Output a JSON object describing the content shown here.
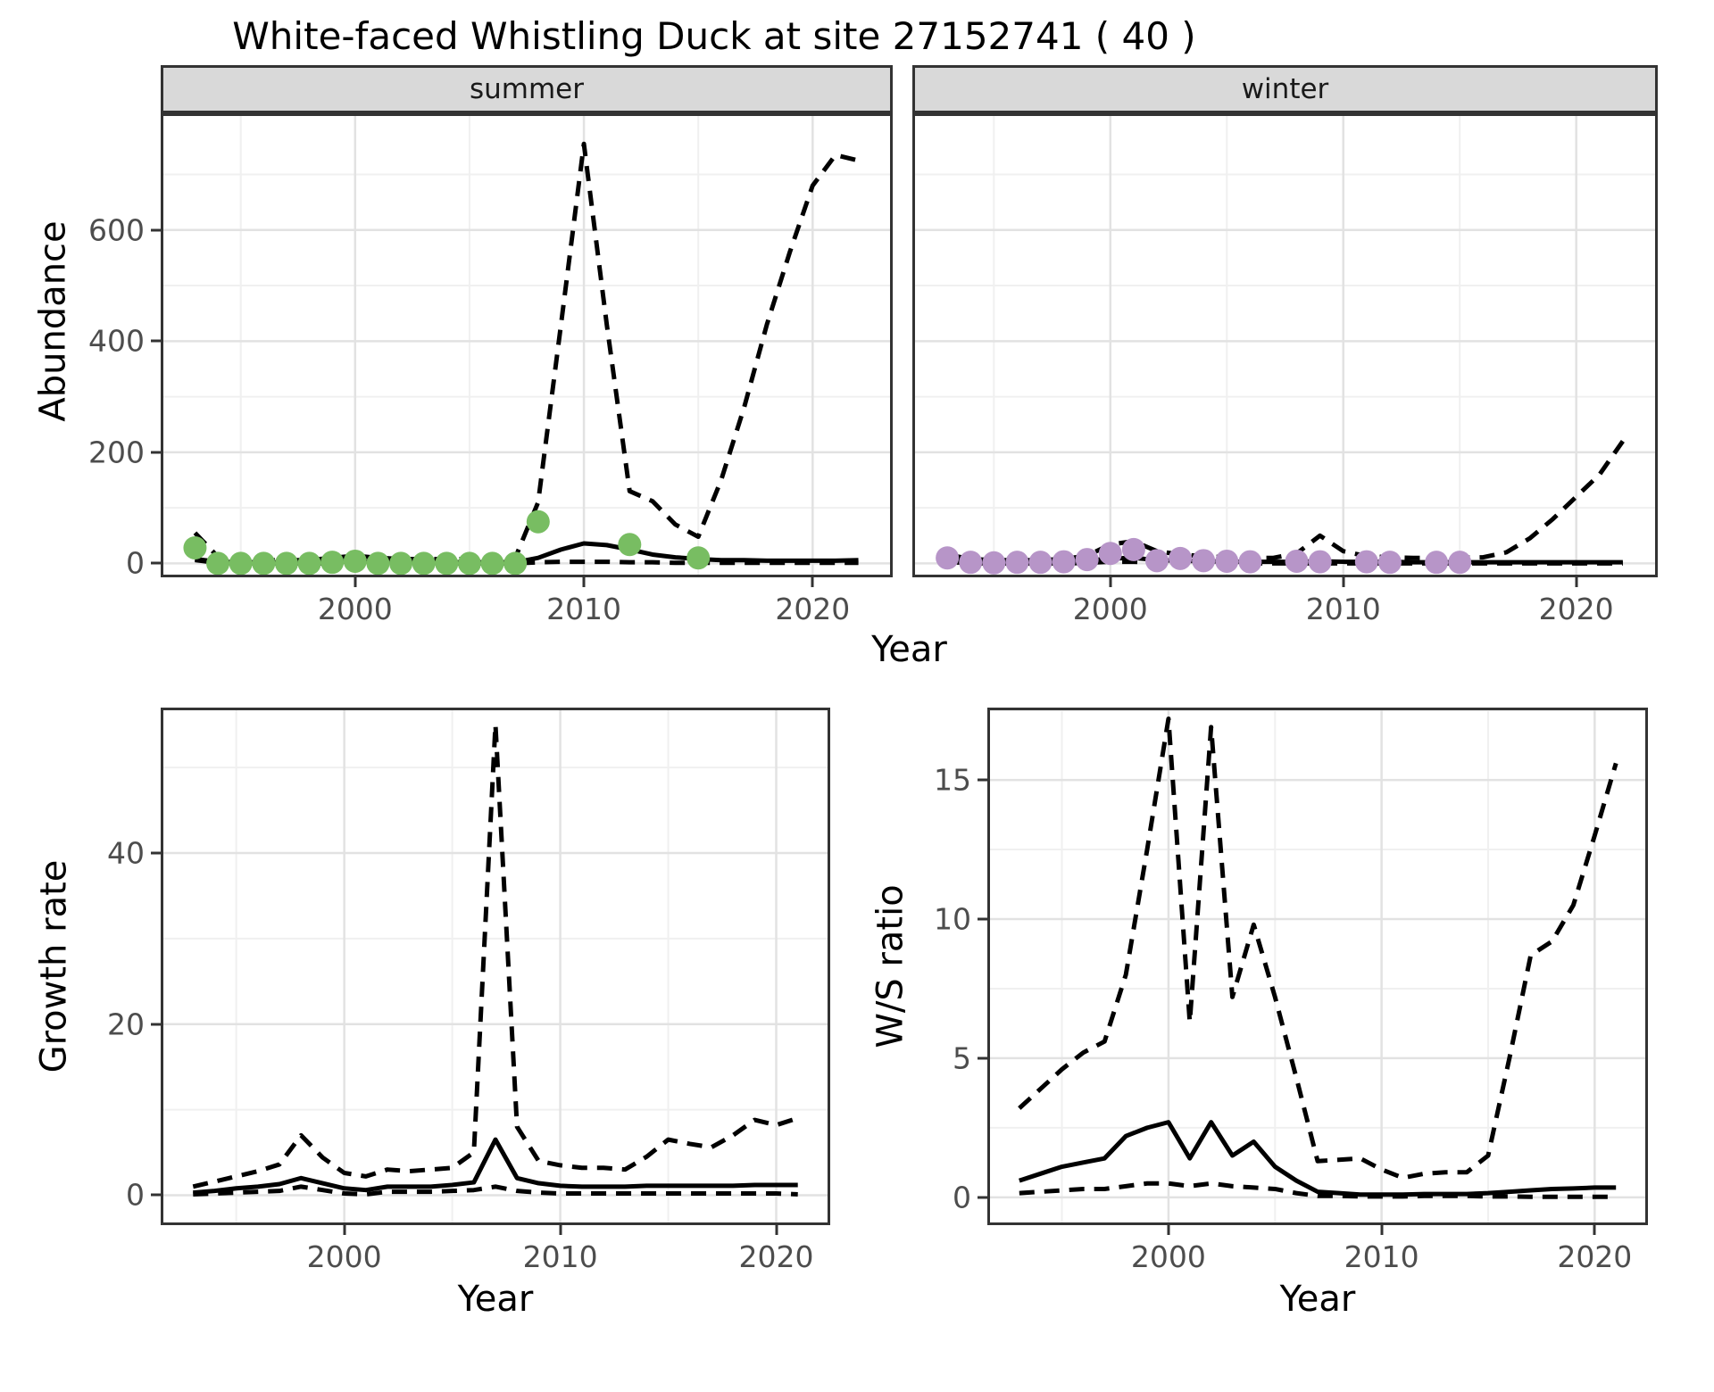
{
  "title": "White-faced Whistling Duck at site 27152741 ( 40 )",
  "axis_labels": {
    "x": "Year",
    "abundance": "Abundance",
    "growth": "Growth rate",
    "ws": "W/S ratio"
  },
  "colors": {
    "summer_point": "#78bd62",
    "winter_point": "#b795c8",
    "line": "#000000",
    "strip_bg": "#d9d9d9",
    "panel_border": "#333333",
    "grid_major": "#e2e2e2",
    "grid_minor": "#f0f0f0",
    "axis_text": "#4d4d4d"
  },
  "chart_data": [
    {
      "type": "line",
      "strip_label": "summer",
      "xlabel": "Year",
      "ylabel": "Abundance",
      "xlim": [
        1991.5,
        2023.5
      ],
      "ylim": [
        -25,
        810
      ],
      "xticks": [
        2000,
        2010,
        2020
      ],
      "yticks": [
        0,
        200,
        400,
        600
      ],
      "series": [
        {
          "name": "lower_ci",
          "style": "dashed",
          "x": [
            1993,
            1994,
            1995,
            1996,
            1997,
            1998,
            1999,
            2000,
            2001,
            2002,
            2003,
            2004,
            2005,
            2006,
            2007,
            2008,
            2009,
            2010,
            2011,
            2012,
            2013,
            2014,
            2015,
            2016,
            2017,
            2018,
            2019,
            2020,
            2021,
            2022
          ],
          "y": [
            6,
            1,
            0,
            0,
            0,
            0,
            0,
            1,
            0,
            0,
            0,
            0,
            0,
            0,
            0,
            2,
            3,
            3,
            3,
            2,
            2,
            1,
            1,
            1,
            1,
            1,
            1,
            1,
            1,
            1
          ]
        },
        {
          "name": "upper_ci",
          "style": "dashed",
          "x": [
            1993,
            1994,
            1995,
            1996,
            1997,
            1998,
            1999,
            2000,
            2001,
            2002,
            2003,
            2004,
            2005,
            2006,
            2007,
            2008,
            2009,
            2010,
            2011,
            2012,
            2013,
            2014,
            2015,
            2016,
            2017,
            2018,
            2019,
            2020,
            2021,
            2022
          ],
          "y": [
            55,
            12,
            8,
            6,
            6,
            6,
            10,
            14,
            10,
            8,
            8,
            8,
            8,
            8,
            10,
            110,
            430,
            755,
            430,
            130,
            112,
            70,
            48,
            150,
            280,
            430,
            560,
            680,
            735,
            725
          ]
        },
        {
          "name": "fit",
          "style": "solid",
          "x": [
            1993,
            1994,
            1995,
            1996,
            1997,
            1998,
            1999,
            2000,
            2001,
            2002,
            2003,
            2004,
            2005,
            2006,
            2007,
            2008,
            2009,
            2010,
            2011,
            2012,
            2013,
            2014,
            2015,
            2016,
            2017,
            2018,
            2019,
            2020,
            2021,
            2022
          ],
          "y": [
            8,
            3,
            2,
            2,
            2,
            2,
            3,
            4,
            3,
            3,
            2,
            2,
            2,
            2,
            2,
            10,
            25,
            36,
            33,
            25,
            16,
            11,
            8,
            6,
            6,
            5,
            5,
            5,
            5,
            6
          ]
        },
        {
          "name": "observations",
          "style": "points",
          "color": "#78bd62",
          "x": [
            1993,
            1994,
            1995,
            1996,
            1997,
            1998,
            1999,
            2000,
            2001,
            2002,
            2003,
            2004,
            2005,
            2006,
            2007,
            2008,
            2012,
            2015
          ],
          "y": [
            28,
            0,
            0,
            0,
            0,
            0,
            2,
            4,
            0,
            0,
            0,
            0,
            0,
            0,
            0,
            75,
            34,
            10
          ]
        }
      ]
    },
    {
      "type": "line",
      "strip_label": "winter",
      "xlabel": "Year",
      "ylabel": "Abundance",
      "xlim": [
        1991.5,
        2023.5
      ],
      "ylim": [
        -25,
        810
      ],
      "xticks": [
        2000,
        2010,
        2020
      ],
      "yticks": [
        0,
        200,
        400,
        600
      ],
      "series": [
        {
          "name": "lower_ci",
          "style": "dashed",
          "x": [
            1993,
            1994,
            1995,
            1996,
            1997,
            1998,
            1999,
            2000,
            2001,
            2002,
            2003,
            2004,
            2005,
            2006,
            2007,
            2008,
            2009,
            2010,
            2011,
            2012,
            2013,
            2014,
            2015,
            2016,
            2017,
            2018,
            2019,
            2020,
            2021,
            2022
          ],
          "y": [
            3,
            0,
            0,
            0,
            0,
            0,
            1,
            3,
            3,
            1,
            1,
            0,
            0,
            0,
            0,
            0,
            0,
            0,
            0,
            0,
            0,
            0,
            0,
            0,
            0,
            0,
            0,
            0,
            0,
            0
          ]
        },
        {
          "name": "upper_ci",
          "style": "dashed",
          "x": [
            1993,
            1994,
            1995,
            1996,
            1997,
            1998,
            1999,
            2000,
            2001,
            2002,
            2003,
            2004,
            2005,
            2006,
            2007,
            2008,
            2009,
            2010,
            2011,
            2012,
            2013,
            2014,
            2015,
            2016,
            2017,
            2018,
            2019,
            2020,
            2021,
            2022
          ],
          "y": [
            16,
            8,
            6,
            6,
            6,
            8,
            14,
            34,
            40,
            22,
            16,
            13,
            11,
            10,
            10,
            18,
            50,
            22,
            13,
            11,
            10,
            10,
            10,
            11,
            20,
            45,
            80,
            120,
            160,
            220
          ]
        },
        {
          "name": "fit",
          "style": "solid",
          "x": [
            1993,
            1994,
            1995,
            1996,
            1997,
            1998,
            1999,
            2000,
            2001,
            2002,
            2003,
            2004,
            2005,
            2006,
            2007,
            2008,
            2009,
            2010,
            2011,
            2012,
            2013,
            2014,
            2015,
            2016,
            2017,
            2018,
            2019,
            2020,
            2021,
            2022
          ],
          "y": [
            8,
            3,
            2,
            2,
            2,
            3,
            5,
            9,
            10,
            6,
            5,
            4,
            3,
            3,
            3,
            3,
            4,
            3,
            3,
            3,
            2,
            2,
            2,
            2,
            2,
            2,
            2,
            2,
            2,
            2
          ]
        },
        {
          "name": "observations",
          "style": "points",
          "color": "#b795c8",
          "x": [
            1993,
            1994,
            1995,
            1996,
            1997,
            1998,
            1999,
            2000,
            2001,
            2002,
            2003,
            2004,
            2005,
            2006,
            2008,
            2009,
            2011,
            2012,
            2014,
            2015
          ],
          "y": [
            10,
            2,
            1,
            2,
            2,
            3,
            7,
            18,
            25,
            5,
            9,
            5,
            4,
            3,
            4,
            3,
            3,
            2,
            2,
            2
          ]
        }
      ]
    },
    {
      "type": "line",
      "strip_label": "",
      "xlabel": "Year",
      "ylabel": "Growth rate",
      "xlim": [
        1991.5,
        2022.5
      ],
      "ylim": [
        -3.5,
        57
      ],
      "xticks": [
        2000,
        2010,
        2020
      ],
      "yticks": [
        0,
        20,
        40
      ],
      "series": [
        {
          "name": "lower_ci",
          "style": "dashed",
          "x": [
            1993,
            1994,
            1995,
            1996,
            1997,
            1998,
            1999,
            2000,
            2001,
            2002,
            2003,
            2004,
            2005,
            2006,
            2007,
            2008,
            2009,
            2010,
            2011,
            2012,
            2013,
            2014,
            2015,
            2016,
            2017,
            2018,
            2019,
            2020,
            2021
          ],
          "y": [
            0.1,
            0.2,
            0.3,
            0.4,
            0.5,
            1.0,
            0.6,
            0.2,
            0.1,
            0.4,
            0.4,
            0.4,
            0.5,
            0.6,
            1.0,
            0.5,
            0.3,
            0.2,
            0.2,
            0.2,
            0.2,
            0.2,
            0.2,
            0.2,
            0.2,
            0.2,
            0.2,
            0.2,
            0.1
          ]
        },
        {
          "name": "upper_ci",
          "style": "dashed",
          "x": [
            1993,
            1994,
            1995,
            1996,
            1997,
            1998,
            1999,
            2000,
            2001,
            2002,
            2003,
            2004,
            2005,
            2006,
            2007,
            2008,
            2009,
            2010,
            2011,
            2012,
            2013,
            2014,
            2015,
            2016,
            2017,
            2018,
            2019,
            2020,
            2021
          ],
          "y": [
            1.0,
            1.6,
            2.2,
            2.8,
            3.6,
            7.0,
            4.4,
            2.6,
            2.2,
            3.0,
            2.8,
            3.0,
            3.2,
            5.0,
            55,
            8.0,
            4.0,
            3.5,
            3.2,
            3.2,
            3.0,
            4.5,
            6.5,
            6.0,
            5.6,
            7.0,
            8.8,
            8.2,
            9.0
          ]
        },
        {
          "name": "fit",
          "style": "solid",
          "x": [
            1993,
            1994,
            1995,
            1996,
            1997,
            1998,
            1999,
            2000,
            2001,
            2002,
            2003,
            2004,
            2005,
            2006,
            2007,
            2008,
            2009,
            2010,
            2011,
            2012,
            2013,
            2014,
            2015,
            2016,
            2017,
            2018,
            2019,
            2020,
            2021
          ],
          "y": [
            0.3,
            0.5,
            0.8,
            1.0,
            1.3,
            2.0,
            1.4,
            0.8,
            0.6,
            1.0,
            1.0,
            1.0,
            1.2,
            1.5,
            6.5,
            2.0,
            1.4,
            1.1,
            1.0,
            1.0,
            1.0,
            1.1,
            1.1,
            1.1,
            1.1,
            1.1,
            1.2,
            1.2,
            1.2
          ]
        }
      ]
    },
    {
      "type": "line",
      "strip_label": "",
      "xlabel": "Year",
      "ylabel": "W/S ratio",
      "xlim": [
        1991.5,
        2022.5
      ],
      "ylim": [
        -1,
        17.6
      ],
      "xticks": [
        2000,
        2010,
        2020
      ],
      "yticks": [
        0,
        5,
        10,
        15
      ],
      "series": [
        {
          "name": "lower_ci",
          "style": "dashed",
          "x": [
            1993,
            1994,
            1995,
            1996,
            1997,
            1998,
            1999,
            2000,
            2001,
            2002,
            2003,
            2004,
            2005,
            2006,
            2007,
            2008,
            2009,
            2010,
            2011,
            2012,
            2013,
            2014,
            2015,
            2016,
            2017,
            2018,
            2019,
            2020,
            2021
          ],
          "y": [
            0.15,
            0.2,
            0.25,
            0.3,
            0.3,
            0.4,
            0.5,
            0.5,
            0.4,
            0.5,
            0.4,
            0.35,
            0.3,
            0.15,
            0.05,
            0.05,
            0.03,
            0.03,
            0.03,
            0.05,
            0.05,
            0.05,
            0.03,
            0.03,
            0.02,
            0.02,
            0.02,
            0.02,
            0.02
          ]
        },
        {
          "name": "upper_ci",
          "style": "dashed",
          "x": [
            1993,
            1994,
            1995,
            1996,
            1997,
            1998,
            1999,
            2000,
            2001,
            2002,
            2003,
            2004,
            2005,
            2006,
            2007,
            2008,
            2009,
            2010,
            2011,
            2012,
            2013,
            2014,
            2015,
            2016,
            2017,
            2018,
            2019,
            2020,
            2021
          ],
          "y": [
            3.2,
            3.9,
            4.6,
            5.2,
            5.6,
            8.0,
            12.5,
            17.2,
            6.3,
            16.9,
            7.2,
            9.8,
            7.2,
            4.3,
            1.3,
            1.35,
            1.4,
            1.0,
            0.7,
            0.85,
            0.9,
            0.9,
            1.5,
            5.0,
            8.7,
            9.2,
            10.5,
            13.0,
            15.6
          ]
        },
        {
          "name": "fit",
          "style": "solid",
          "x": [
            1993,
            1994,
            1995,
            1996,
            1997,
            1998,
            1999,
            2000,
            2001,
            2002,
            2003,
            2004,
            2005,
            2006,
            2007,
            2008,
            2009,
            2010,
            2011,
            2012,
            2013,
            2014,
            2015,
            2016,
            2017,
            2018,
            2019,
            2020,
            2021
          ],
          "y": [
            0.6,
            0.85,
            1.1,
            1.25,
            1.4,
            2.2,
            2.5,
            2.7,
            1.4,
            2.7,
            1.5,
            2.0,
            1.1,
            0.6,
            0.2,
            0.15,
            0.1,
            0.1,
            0.1,
            0.12,
            0.12,
            0.12,
            0.15,
            0.2,
            0.25,
            0.3,
            0.32,
            0.35,
            0.35
          ]
        }
      ]
    }
  ]
}
